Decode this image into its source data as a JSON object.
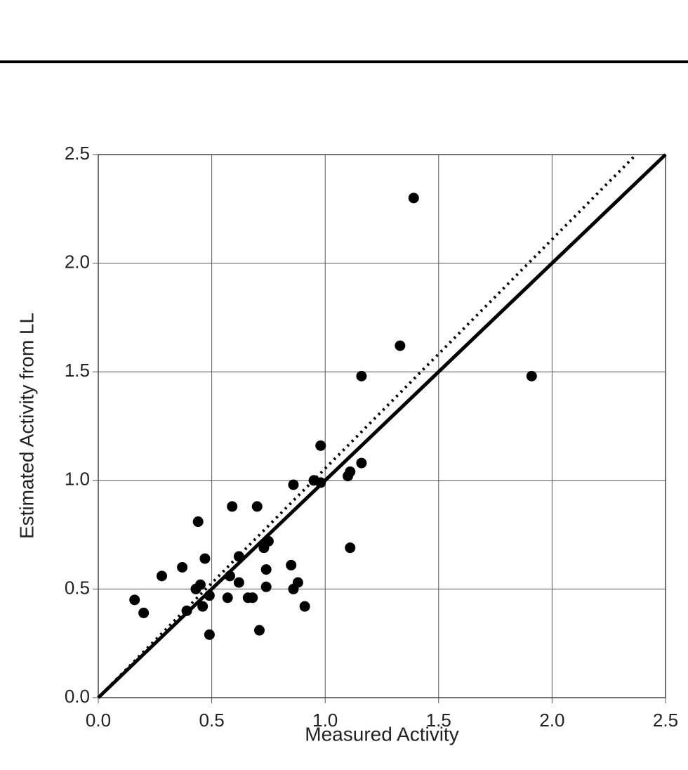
{
  "chart_data": {
    "type": "scatter",
    "x_label": "Measured Activity",
    "y_label": "Estimated Activity from LL",
    "xlim": [
      0,
      2.5
    ],
    "ylim": [
      0,
      2.5
    ],
    "xticks": [
      {
        "value": 0,
        "label": "0.0"
      },
      0.5,
      {
        "value": 1,
        "label": "1.0"
      },
      1.5,
      {
        "value": 2,
        "label": "2.0"
      },
      2.5
    ],
    "yticks": [
      {
        "value": 0,
        "label": "0.0"
      },
      0.5,
      {
        "value": 1,
        "label": "1.0"
      },
      1.5,
      {
        "value": 2,
        "label": "2.0"
      },
      2.5
    ],
    "grid": true,
    "color": "#000000",
    "x": [
      0.16,
      0.2,
      0.28,
      0.37,
      0.39,
      0.44,
      0.43,
      0.45,
      0.46,
      0.47,
      0.49,
      0.49,
      0.57,
      0.58,
      0.59,
      0.62,
      0.62,
      0.66,
      0.68,
      0.7,
      0.71,
      0.73,
      0.74,
      0.74,
      0.75,
      0.85,
      0.86,
      0.86,
      0.88,
      0.91,
      0.95,
      0.98,
      0.98,
      1.1,
      1.11,
      1.11,
      1.16,
      1.16,
      1.33,
      1.39,
      1.91
    ],
    "y": [
      0.45,
      0.39,
      0.56,
      0.6,
      0.4,
      0.81,
      0.5,
      0.52,
      0.42,
      0.64,
      0.47,
      0.29,
      0.46,
      0.56,
      0.88,
      0.65,
      0.53,
      0.46,
      0.46,
      0.88,
      0.31,
      0.69,
      0.51,
      0.59,
      0.72,
      0.61,
      0.98,
      0.5,
      0.53,
      0.42,
      1.0,
      0.99,
      1.16,
      1.02,
      1.04,
      0.69,
      1.08,
      1.48,
      1.62,
      2.3,
      1.48
    ],
    "lines": [
      {
        "x": [
          0,
          2.5
        ],
        "y": [
          0,
          2.5
        ],
        "style": "solid"
      },
      {
        "x": [
          0,
          2.37
        ],
        "y": [
          0,
          2.5
        ],
        "style": "dotted"
      }
    ]
  }
}
